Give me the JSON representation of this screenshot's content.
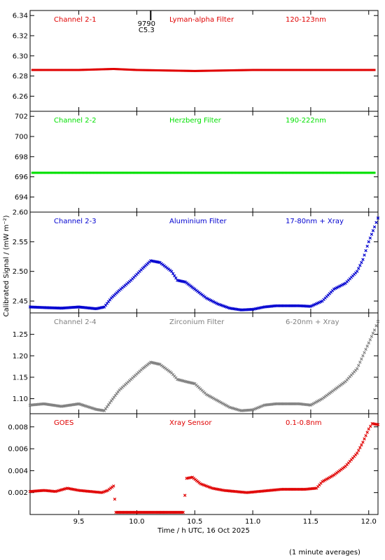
{
  "figure": {
    "xlabel": "Time / h UTC, 16 Oct 2025",
    "ylabel": "Calibrated Signal / (mW m⁻²)",
    "footnote": "(1 minute averages)",
    "marker": {
      "lines": [
        "9790",
        "C5.3"
      ],
      "time": 10.12
    }
  },
  "chart_data": [
    {
      "type": "scatter",
      "labels": [
        "Channel 2-1",
        "Lyman-alpha Filter",
        "120-123nm"
      ],
      "color": "#e00000",
      "xlim": [
        9.08,
        12.08
      ],
      "ylim": [
        6.245,
        6.345
      ],
      "yticks": [
        6.26,
        6.28,
        6.3,
        6.32,
        6.34
      ],
      "ytick_decimals": 2,
      "x": [
        9.1,
        9.5,
        9.8,
        10.0,
        10.5,
        11.0,
        11.5,
        12.05
      ],
      "y": [
        6.286,
        6.286,
        6.287,
        6.286,
        6.285,
        6.286,
        6.286,
        6.286
      ]
    },
    {
      "type": "scatter",
      "labels": [
        "Channel 2-2",
        "Herzberg Filter",
        "190-222nm"
      ],
      "color": "#00e000",
      "xlim": [
        9.08,
        12.08
      ],
      "ylim": [
        692.5,
        702.5
      ],
      "yticks": [
        694,
        696,
        698,
        700,
        702
      ],
      "ytick_decimals": 0,
      "x": [
        9.1,
        9.5,
        9.8,
        10.0,
        10.5,
        11.0,
        11.5,
        12.05
      ],
      "y": [
        696.4,
        696.4,
        696.4,
        696.4,
        696.4,
        696.4,
        696.4,
        696.4
      ]
    },
    {
      "type": "scatter",
      "labels": [
        "Channel 2-3",
        "Aluminium Filter",
        "17-80nm + Xray"
      ],
      "color": "#0000d0",
      "xlim": [
        9.08,
        12.08
      ],
      "ylim": [
        2.43,
        2.6
      ],
      "yticks": [
        2.45,
        2.5,
        2.55,
        2.6
      ],
      "ytick_decimals": 2,
      "x": [
        9.08,
        9.2,
        9.35,
        9.5,
        9.65,
        9.72,
        9.78,
        9.85,
        9.95,
        10.05,
        10.12,
        10.2,
        10.3,
        10.35,
        10.42,
        10.5,
        10.6,
        10.7,
        10.8,
        10.9,
        11.0,
        11.1,
        11.2,
        11.3,
        11.4,
        11.5,
        11.6,
        11.7,
        11.8,
        11.9,
        11.95,
        12.0,
        12.05,
        12.08
      ],
      "y": [
        2.44,
        2.439,
        2.438,
        2.44,
        2.437,
        2.44,
        2.455,
        2.468,
        2.485,
        2.505,
        2.518,
        2.515,
        2.5,
        2.485,
        2.482,
        2.47,
        2.455,
        2.445,
        2.438,
        2.435,
        2.436,
        2.44,
        2.442,
        2.442,
        2.442,
        2.441,
        2.45,
        2.47,
        2.48,
        2.5,
        2.52,
        2.55,
        2.575,
        2.59
      ]
    },
    {
      "type": "scatter",
      "labels": [
        "Channel 2-4",
        "Zirconium Filter",
        "6-20nm + Xray"
      ],
      "color": "#808080",
      "xlim": [
        9.08,
        12.08
      ],
      "ylim": [
        1.065,
        1.3
      ],
      "yticks": [
        1.1,
        1.15,
        1.2,
        1.25
      ],
      "ytick_decimals": 2,
      "x": [
        9.08,
        9.2,
        9.35,
        9.5,
        9.65,
        9.72,
        9.78,
        9.85,
        9.95,
        10.05,
        10.12,
        10.2,
        10.3,
        10.35,
        10.42,
        10.5,
        10.6,
        10.7,
        10.8,
        10.9,
        11.0,
        11.1,
        11.2,
        11.3,
        11.4,
        11.5,
        11.6,
        11.7,
        11.8,
        11.9,
        11.95,
        12.0,
        12.05,
        12.08
      ],
      "y": [
        1.085,
        1.088,
        1.082,
        1.088,
        1.075,
        1.072,
        1.095,
        1.12,
        1.145,
        1.17,
        1.185,
        1.18,
        1.16,
        1.145,
        1.14,
        1.135,
        1.11,
        1.095,
        1.08,
        1.072,
        1.074,
        1.085,
        1.088,
        1.088,
        1.088,
        1.085,
        1.1,
        1.12,
        1.14,
        1.17,
        1.2,
        1.23,
        1.26,
        1.28
      ]
    },
    {
      "type": "scatter",
      "labels": [
        "GOES",
        "Xray Sensor",
        "0.1-0.8nm"
      ],
      "color": "#e00000",
      "xlim": [
        9.08,
        12.08
      ],
      "ylim": [
        0.0,
        0.0092
      ],
      "yticks": [
        0.002,
        0.004,
        0.006,
        0.008
      ],
      "ytick_decimals": 3,
      "xticks": [
        9.5,
        10.0,
        10.5,
        11.0,
        11.5,
        12.0
      ],
      "x": [
        9.08,
        9.2,
        9.3,
        9.4,
        9.5,
        9.6,
        9.7,
        9.75,
        9.8,
        9.82,
        10.0,
        10.2,
        10.4,
        10.43,
        10.48,
        10.55,
        10.65,
        10.75,
        10.85,
        10.95,
        11.05,
        11.15,
        11.25,
        11.35,
        11.45,
        11.55,
        11.6,
        11.7,
        11.8,
        11.9,
        11.95,
        12.0,
        12.03,
        12.08
      ],
      "y": [
        0.0021,
        0.0022,
        0.0021,
        0.0024,
        0.0022,
        0.0021,
        0.002,
        0.0022,
        0.0026,
        0.0002,
        0.0002,
        0.0002,
        0.0002,
        0.0033,
        0.0034,
        0.0028,
        0.0024,
        0.0022,
        0.0021,
        0.002,
        0.0021,
        0.0022,
        0.0023,
        0.0023,
        0.0023,
        0.0024,
        0.003,
        0.0036,
        0.0044,
        0.0056,
        0.0066,
        0.0078,
        0.0083,
        0.0082
      ]
    }
  ]
}
